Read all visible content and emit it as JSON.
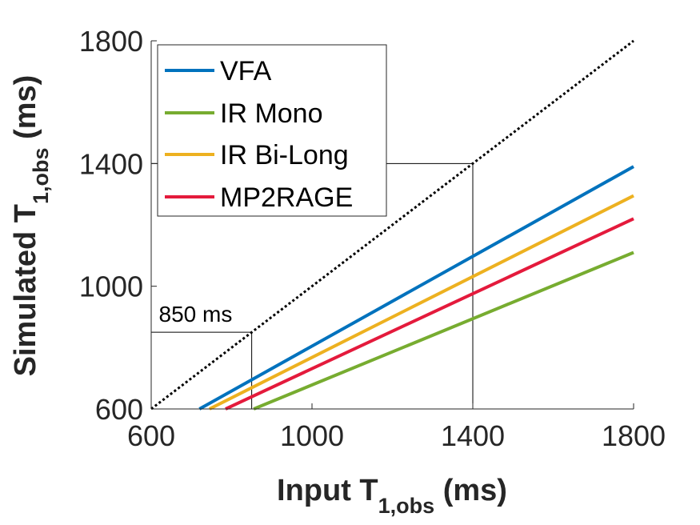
{
  "chart_data": {
    "type": "line",
    "xlabel": {
      "main": "Input T",
      "sub": "1,obs",
      "unit": " (ms)"
    },
    "ylabel": {
      "main": "Simulated T",
      "sub": "1,obs",
      "unit": " (ms)"
    },
    "xlim": [
      600,
      1800
    ],
    "ylim": [
      600,
      1800
    ],
    "xticks": [
      "600",
      "1000",
      "1400",
      "1800"
    ],
    "yticks": [
      "600",
      "1000",
      "1400",
      "1800"
    ],
    "legend_position": "top-left",
    "grid": false,
    "series": [
      {
        "name": "VFA",
        "color": "#0072BD",
        "x": [
          720,
          1800
        ],
        "y": [
          600,
          1390
        ]
      },
      {
        "name": "IR Mono",
        "color": "#77AC30",
        "x": [
          855,
          1800
        ],
        "y": [
          600,
          1110
        ]
      },
      {
        "name": "IR Bi-Long",
        "color": "#EDB120",
        "x": [
          745,
          1800
        ],
        "y": [
          600,
          1295
        ]
      },
      {
        "name": "MP2RAGE",
        "color": "#E41A3C",
        "x": [
          785,
          1800
        ],
        "y": [
          600,
          1220
        ]
      }
    ],
    "identity_line": {
      "x": [
        600,
        1800
      ],
      "y": [
        600,
        1800
      ],
      "color": "#000000",
      "style": "dotted"
    },
    "reference_lines": [
      {
        "x": 850,
        "y": 850
      },
      {
        "x": 1400,
        "y": 1400
      }
    ],
    "annotations": [
      {
        "text": "850 ms",
        "x": 605,
        "y": 885
      }
    ]
  }
}
